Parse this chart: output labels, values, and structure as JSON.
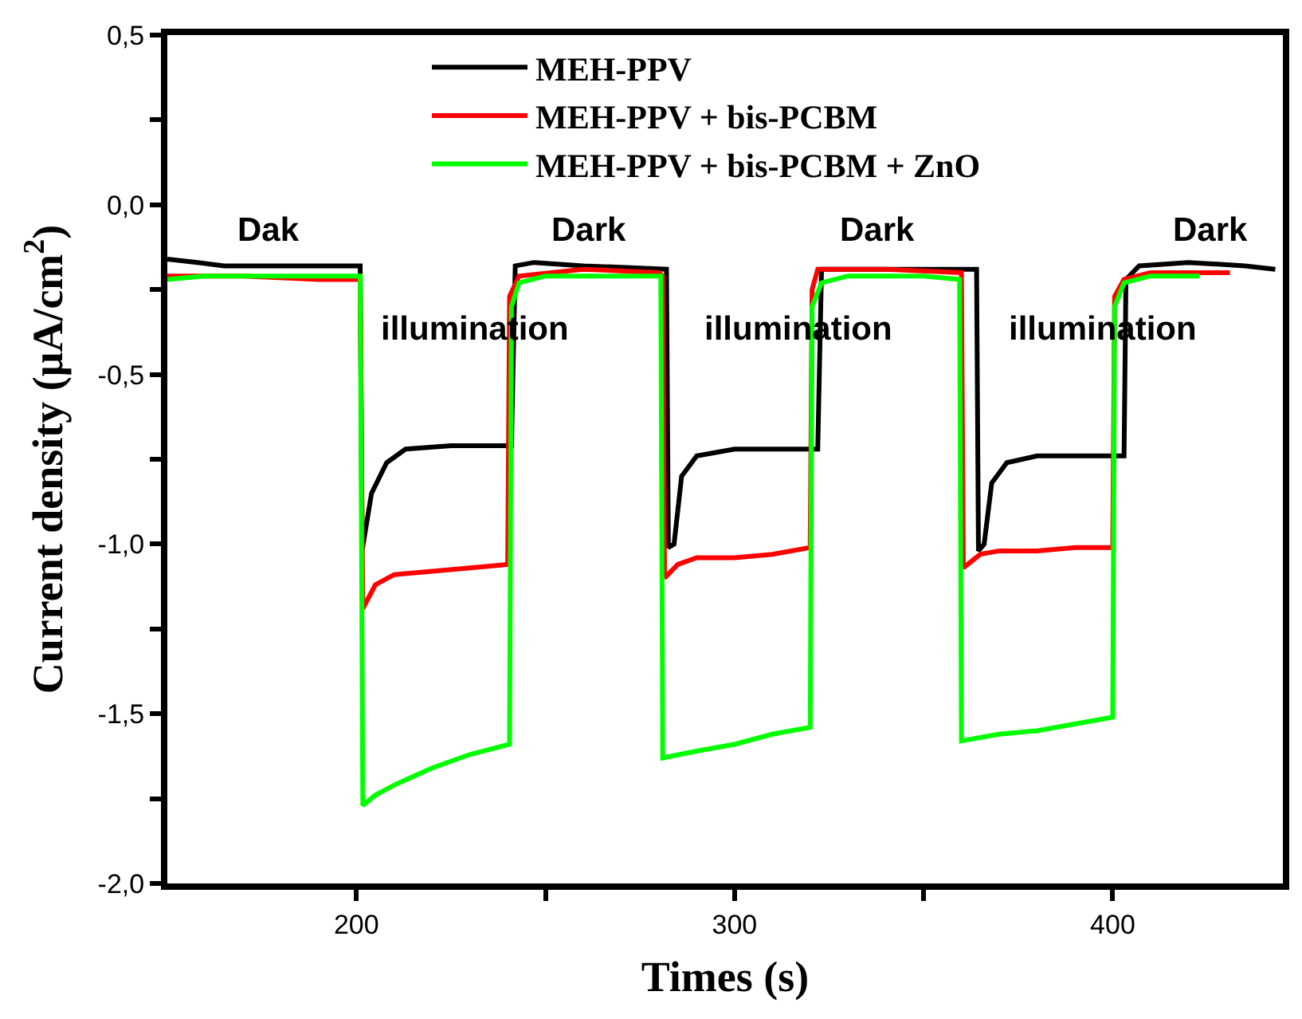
{
  "chart_data": {
    "type": "line",
    "xlabel": "Times (s)",
    "ylabel": "Current density (μA/cm$^{2}$)",
    "xlim": [
      150,
      445
    ],
    "ylim": [
      -2.0,
      0.5
    ],
    "xticks": [
      200,
      {
        "value": 250,
        "label": null
      },
      300,
      {
        "value": 350,
        "label": null
      },
      400
    ],
    "yticks": [
      {
        "value": -2.0,
        "label": "-2,0"
      },
      {
        "value": -1.75,
        "label": null
      },
      {
        "value": -1.5,
        "label": "-1,5"
      },
      {
        "value": -1.25,
        "label": null
      },
      {
        "value": -1.0,
        "label": "-1,0"
      },
      {
        "value": -0.75,
        "label": null
      },
      {
        "value": -0.5,
        "label": "-0,5"
      },
      {
        "value": -0.25,
        "label": null
      },
      {
        "value": 0.0,
        "label": "0,0"
      },
      {
        "value": 0.25,
        "label": null
      },
      {
        "value": 0.5,
        "label": "0,5"
      }
    ],
    "legend": "top",
    "marker": "none",
    "line_style": "solid",
    "annotations": [
      "Dak",
      "Dark",
      "Dark",
      "Dark",
      "illumination",
      "illumination",
      "illumination"
    ],
    "series": [
      {
        "name": "MEH-PPV",
        "color": "#000000",
        "x": [
          150,
          158,
          165,
          201,
          201.5,
          204,
          208,
          213,
          225,
          241,
          242,
          247,
          260,
          282,
          282.5,
          284,
          286,
          290,
          300,
          322,
          323,
          340,
          364,
          364.5,
          366,
          368,
          372,
          380,
          400,
          403,
          403.5,
          407,
          420,
          435,
          443
        ],
        "values": [
          -0.16,
          -0.17,
          -0.18,
          -0.18,
          -1.02,
          -0.85,
          -0.76,
          -0.72,
          -0.71,
          -0.71,
          -0.18,
          -0.17,
          -0.18,
          -0.19,
          -1.01,
          -1.0,
          -0.8,
          -0.74,
          -0.72,
          -0.72,
          -0.19,
          -0.19,
          -0.19,
          -1.02,
          -1.0,
          -0.82,
          -0.76,
          -0.74,
          -0.74,
          -0.74,
          -0.22,
          -0.18,
          -0.17,
          -0.18,
          -0.19
        ]
      },
      {
        "name": "MEH-PPV + bis-PCBM",
        "color": "#ff0000",
        "x": [
          150,
          170,
          190,
          201,
          201.7,
          205,
          210,
          220,
          230,
          240,
          240.5,
          243,
          260,
          280,
          281,
          281.5,
          285,
          290,
          300,
          310,
          320,
          320.5,
          322,
          340,
          360,
          360.5,
          365,
          370,
          380,
          390,
          400,
          400.5,
          403,
          410,
          431
        ],
        "values": [
          -0.21,
          -0.21,
          -0.22,
          -0.22,
          -1.19,
          -1.12,
          -1.09,
          -1.08,
          -1.07,
          -1.06,
          -0.27,
          -0.21,
          -0.19,
          -0.2,
          -0.21,
          -1.1,
          -1.06,
          -1.04,
          -1.04,
          -1.03,
          -1.01,
          -0.25,
          -0.19,
          -0.19,
          -0.2,
          -1.07,
          -1.03,
          -1.02,
          -1.02,
          -1.01,
          -1.01,
          -0.27,
          -0.22,
          -0.2,
          -0.2
        ]
      },
      {
        "name": "MEH-PPV + bis-PCBM + ZnO",
        "color": "#00ff00",
        "x": [
          150,
          160,
          180,
          201,
          201.7,
          205,
          210,
          220,
          230,
          240.5,
          241,
          243,
          250,
          270,
          280.5,
          281,
          290,
          300,
          310,
          320,
          320.5,
          323,
          330,
          350,
          359.5,
          360,
          370,
          380,
          390,
          400,
          400.5,
          403,
          410,
          423
        ],
        "values": [
          -0.22,
          -0.21,
          -0.21,
          -0.21,
          -1.77,
          -1.74,
          -1.71,
          -1.66,
          -1.62,
          -1.59,
          -0.3,
          -0.23,
          -0.21,
          -0.21,
          -0.21,
          -1.63,
          -1.61,
          -1.59,
          -1.56,
          -1.54,
          -0.3,
          -0.23,
          -0.21,
          -0.21,
          -0.22,
          -1.58,
          -1.56,
          -1.55,
          -1.53,
          -1.51,
          -0.3,
          -0.23,
          -0.21,
          -0.21
        ]
      }
    ]
  }
}
